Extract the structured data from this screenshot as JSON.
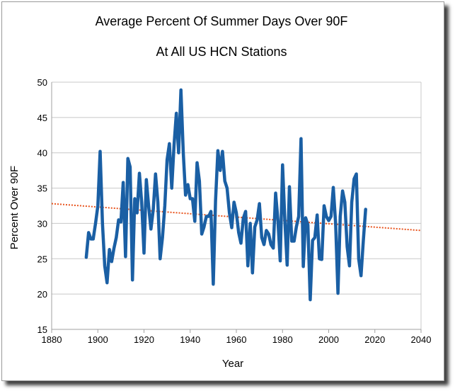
{
  "chart_data": {
    "type": "line",
    "title": "Average Percent Of Summer Days Over 90F",
    "subtitle": "At All US HCN Stations",
    "xlabel": "Year",
    "ylabel": "Percent Over 90F",
    "xlim": [
      1880,
      2040
    ],
    "ylim": [
      15,
      50
    ],
    "xticks": [
      1880,
      1900,
      1920,
      1940,
      1960,
      1980,
      2000,
      2020,
      2040
    ],
    "yticks": [
      15,
      20,
      25,
      30,
      35,
      40,
      45,
      50
    ],
    "grid": "horizontal",
    "legend": "none",
    "colors": {
      "series": "#1a5fa4",
      "trend": "#e8541e",
      "grid": "#c8c8c8",
      "axis": "#a0a0a0"
    },
    "series": [
      {
        "x": [
          1895,
          1896,
          1897,
          1898,
          1899,
          1900,
          1901,
          1902,
          1903,
          1904,
          1905,
          1906,
          1907,
          1908,
          1909,
          1910,
          1911,
          1912,
          1913,
          1914,
          1915,
          1916,
          1917,
          1918,
          1919,
          1920,
          1921,
          1922,
          1923,
          1924,
          1925,
          1926,
          1927,
          1928,
          1929,
          1930,
          1931,
          1932,
          1933,
          1934,
          1935,
          1936,
          1937,
          1938,
          1939,
          1940,
          1941,
          1942,
          1943,
          1944,
          1945,
          1946,
          1947,
          1948,
          1949,
          1950,
          1951,
          1952,
          1953,
          1954,
          1955,
          1956,
          1957,
          1958,
          1959,
          1960,
          1961,
          1962,
          1963,
          1964,
          1965,
          1966,
          1967,
          1968,
          1969,
          1970,
          1971,
          1972,
          1973,
          1974,
          1975,
          1976,
          1977,
          1978,
          1979,
          1980,
          1981,
          1982,
          1983,
          1984,
          1985,
          1986,
          1987,
          1988,
          1989,
          1990,
          1991,
          1992,
          1993,
          1994,
          1995,
          1996,
          1997,
          1998,
          1999,
          2000,
          2001,
          2002,
          2003,
          2004,
          2005,
          2006,
          2007,
          2008,
          2009,
          2010,
          2011,
          2012,
          2013,
          2014,
          2015,
          2016
        ],
        "y": [
          25.2,
          28.7,
          27.8,
          27.8,
          30.0,
          32.5,
          40.2,
          30.0,
          24.0,
          21.6,
          26.3,
          24.6,
          26.5,
          28.0,
          30.5,
          30.2,
          35.8,
          25.3,
          39.2,
          38.0,
          22.0,
          33.5,
          31.5,
          37.1,
          33.0,
          25.8,
          36.2,
          32.5,
          29.2,
          32.0,
          37.0,
          33.0,
          25.0,
          28.0,
          32.5,
          39.0,
          41.3,
          35.0,
          41.0,
          45.6,
          40.0,
          48.9,
          40.0,
          34.0,
          35.5,
          33.5,
          33.5,
          30.3,
          38.6,
          36.0,
          28.5,
          29.5,
          31.0,
          31.0,
          31.7,
          21.4,
          33.2,
          40.3,
          37.5,
          40.2,
          36.0,
          35.0,
          31.5,
          29.4,
          33.0,
          31.5,
          28.7,
          27.2,
          30.7,
          31.7,
          24.0,
          30.0,
          23.0,
          29.5,
          30.5,
          32.8,
          28.0,
          27.0,
          29.0,
          28.5,
          27.0,
          26.5,
          34.3,
          30.5,
          24.7,
          38.3,
          30.5,
          24.1,
          35.2,
          27.5,
          27.5,
          29.5,
          31.0,
          42.0,
          23.9,
          30.8,
          29.8,
          19.2,
          27.6,
          28.0,
          31.2,
          25.0,
          24.9,
          32.5,
          31.0,
          30.4,
          31.0,
          35.1,
          30.0,
          20.1,
          31.0,
          34.6,
          33.0,
          26.7,
          24.0,
          33.0,
          36.3,
          37.0,
          25.0,
          22.6,
          27.5,
          32.0
        ]
      }
    ],
    "trendline": {
      "type": "linear",
      "x": [
        1880,
        2040
      ],
      "y": [
        32.8,
        29.0
      ]
    }
  }
}
